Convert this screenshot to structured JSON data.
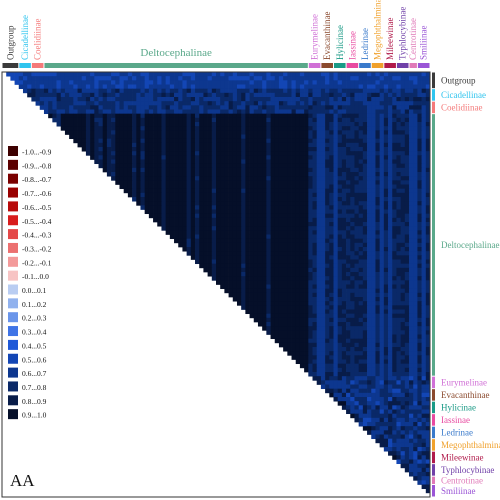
{
  "chart_data": {
    "type": "heatmap",
    "title": "",
    "panel_label": "AA",
    "n_taxa": 100,
    "triangle": "upper",
    "groups": [
      {
        "name": "Outgroup",
        "count": 4,
        "color": "#3a3a3a"
      },
      {
        "name": "Cicadellinae",
        "count": 3,
        "color": "#2fc4ee"
      },
      {
        "name": "Coelidiinae",
        "count": 3,
        "color": "#f47a7a"
      },
      {
        "name": "Deltocephalinae",
        "count": 63,
        "color": "#5aa88a"
      },
      {
        "name": "Eurymelinae",
        "count": 3,
        "color": "#d070d6"
      },
      {
        "name": "Evacanthinae",
        "count": 3,
        "color": "#8b4a2e"
      },
      {
        "name": "Hylicinae",
        "count": 3,
        "color": "#1a9a86"
      },
      {
        "name": "Iassinae",
        "count": 3,
        "color": "#e84aa0"
      },
      {
        "name": "Ledrinae",
        "count": 3,
        "color": "#3a7acb"
      },
      {
        "name": "Megophthalminae",
        "count": 3,
        "color": "#f0a12c"
      },
      {
        "name": "Mileewinae",
        "count": 3,
        "color": "#b01a4a"
      },
      {
        "name": "Typhlocybinae",
        "count": 3,
        "color": "#7040a8"
      },
      {
        "name": "Centrotinae",
        "count": 2,
        "color": "#e07ab8"
      },
      {
        "name": "Smiliinae",
        "count": 3,
        "color": "#9a55d6"
      }
    ],
    "legend": [
      {
        "label": "-1.0...-0.9",
        "color": "#3d0000"
      },
      {
        "label": "-0.9...-0.8",
        "color": "#5c0000"
      },
      {
        "label": "-0.8...-0.7",
        "color": "#7a0000"
      },
      {
        "label": "-0.7...-0.6",
        "color": "#990000"
      },
      {
        "label": "-0.6...-0.5",
        "color": "#b80b0b"
      },
      {
        "label": "-0.5...-0.4",
        "color": "#d81c1c"
      },
      {
        "label": "-0.4...-0.3",
        "color": "#e44848"
      },
      {
        "label": "-0.3...-0.2",
        "color": "#ec7070"
      },
      {
        "label": "-0.2...-0.1",
        "color": "#f39a9a"
      },
      {
        "label": "-0.1...0.0",
        "color": "#f7c4c4"
      },
      {
        "label": "0.0...0.1",
        "color": "#b9cdf2"
      },
      {
        "label": "0.1...0.2",
        "color": "#91b2ee"
      },
      {
        "label": "0.2...0.3",
        "color": "#6a95ea"
      },
      {
        "label": "0.3...0.4",
        "color": "#3f74e6"
      },
      {
        "label": "0.4...0.5",
        "color": "#1f59d8"
      },
      {
        "label": "0.5...0.6",
        "color": "#1346b5"
      },
      {
        "label": "0.6...0.7",
        "color": "#0d378f"
      },
      {
        "label": "0.7...0.8",
        "color": "#0a2968"
      },
      {
        "label": "0.8...0.9",
        "color": "#081c49"
      },
      {
        "label": "0.9...1.0",
        "color": "#050f29"
      }
    ],
    "value_range": [
      -1.0,
      1.0
    ],
    "grid": false
  }
}
